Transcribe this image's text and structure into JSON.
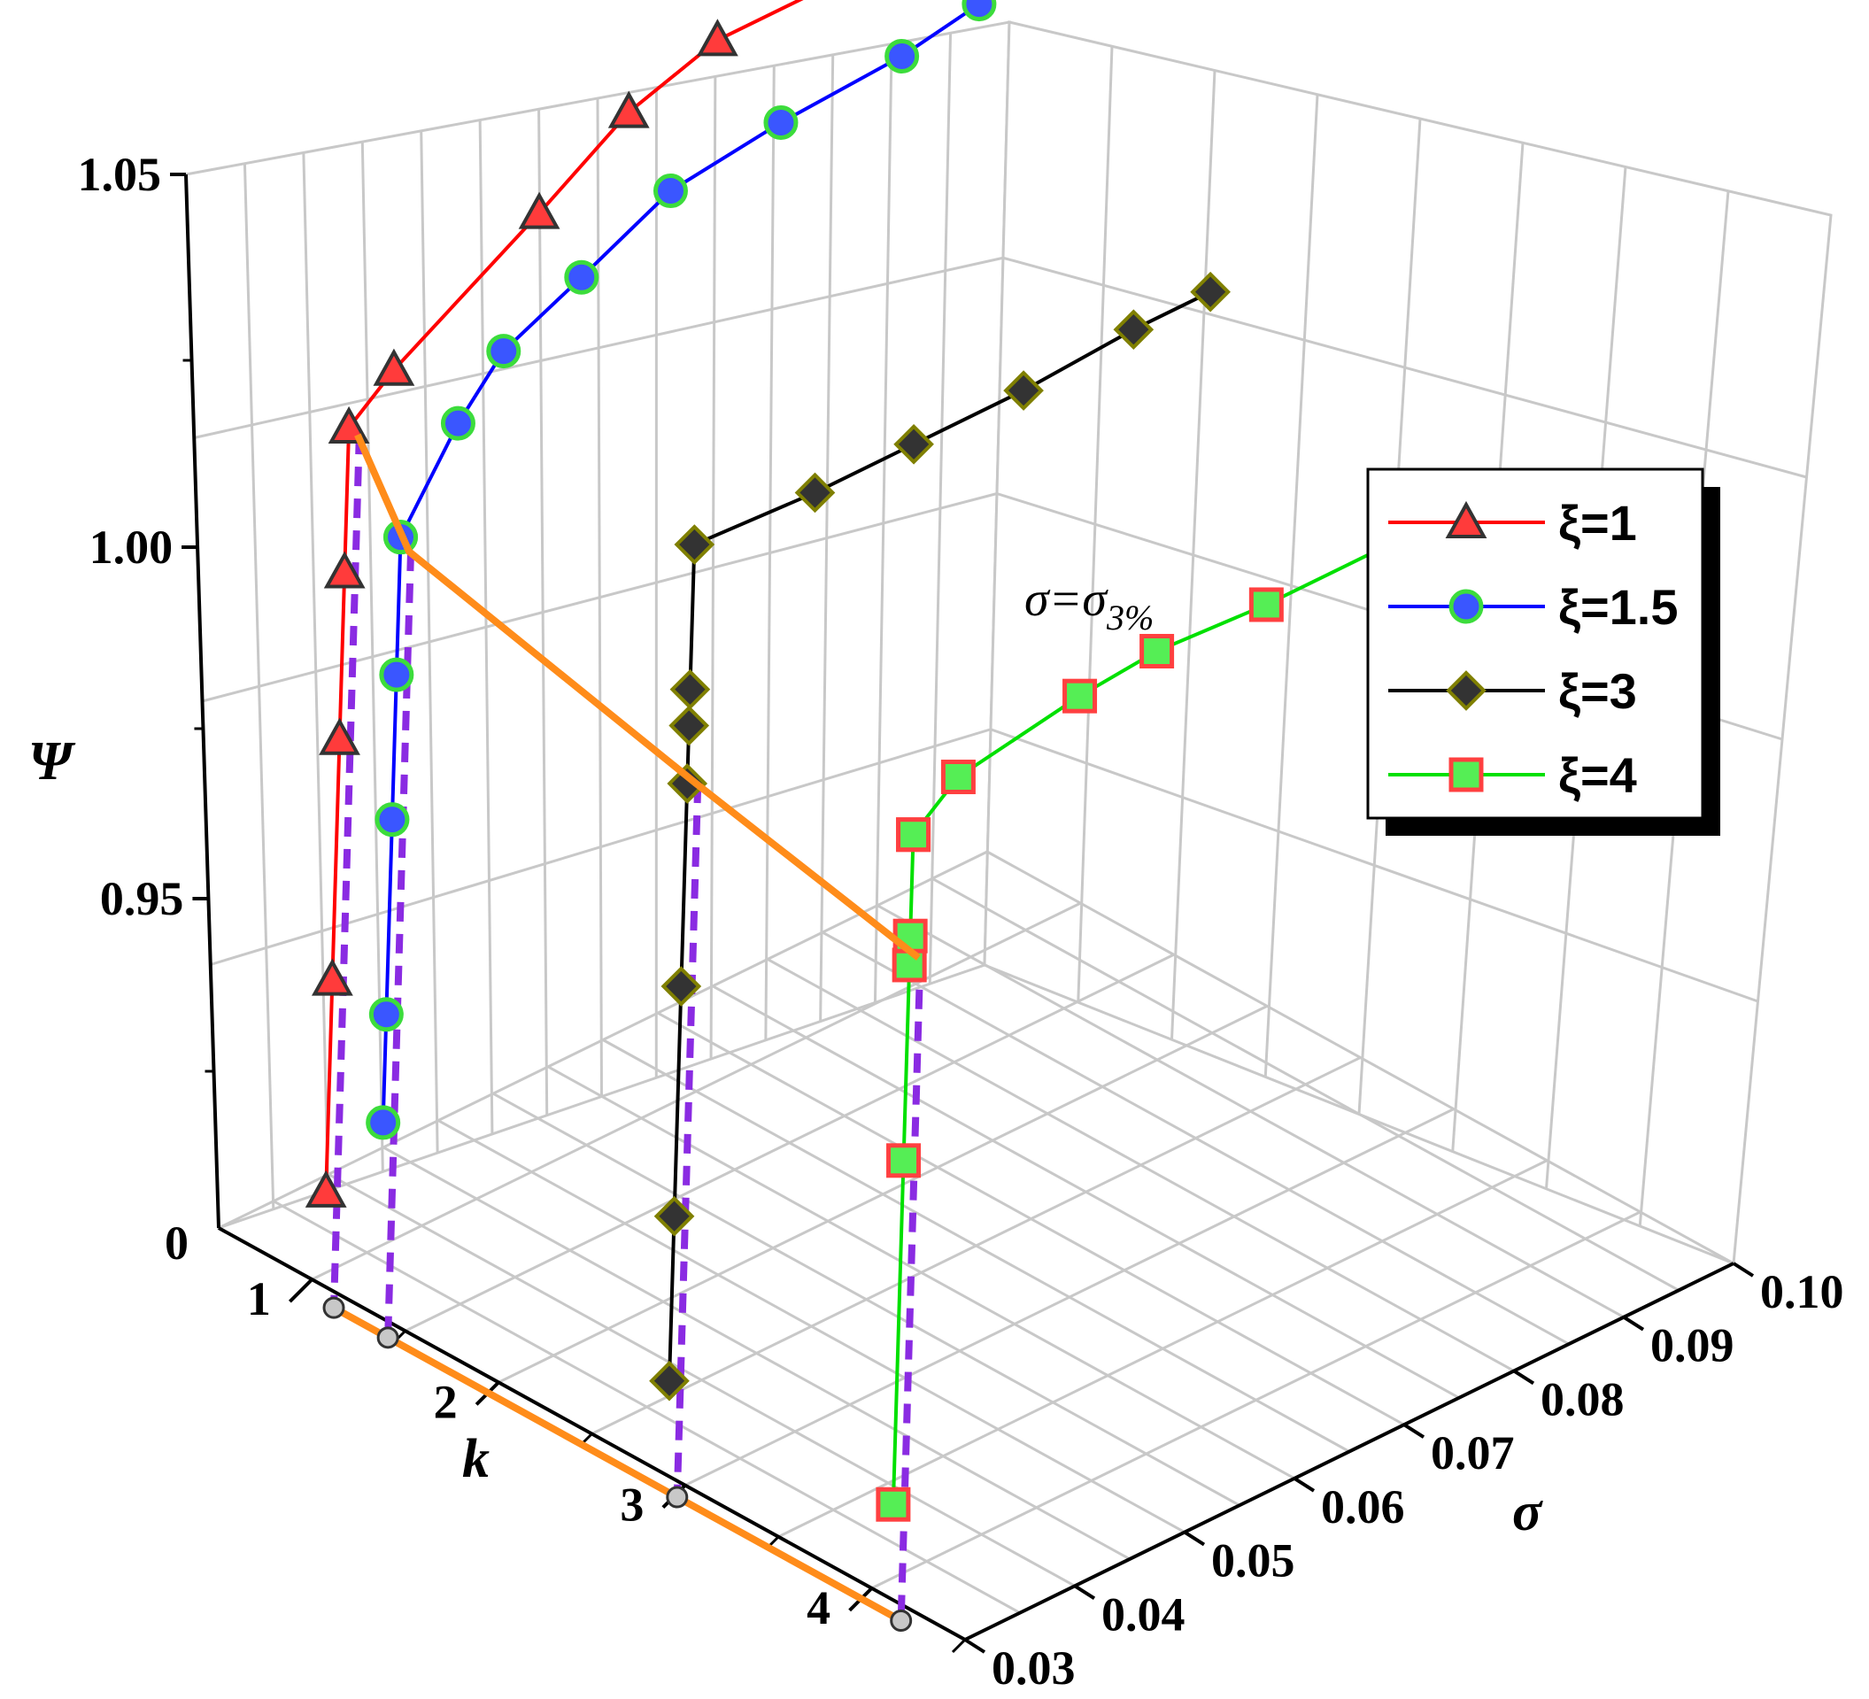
{
  "chart_data": {
    "type": "line",
    "projection": "3d",
    "axes": {
      "k": {
        "label": "k",
        "range": [
          0.5,
          4.5
        ],
        "ticks": [
          "1",
          "2",
          "3",
          "4"
        ]
      },
      "sigma": {
        "label": "σ",
        "range": [
          0.03,
          0.1
        ],
        "ticks": [
          "0.03",
          "0.04",
          "0.05",
          "0.06",
          "0.07",
          "0.08",
          "0.09",
          "0.10"
        ]
      },
      "psi": {
        "label": "Ψ",
        "range": [
          0.95,
          1.05
        ],
        "ticks": [
          "1.05",
          "1.00",
          "0.95"
        ],
        "base_label": "0"
      }
    },
    "grid": true,
    "legend_position": "right",
    "series": [
      {
        "name": "ξ=1",
        "color": "#ff0000",
        "marker": "triangle",
        "marker_fill": "#ff3b3b",
        "marker_edge": "#333333",
        "k": 1.06,
        "sigma": [
          0.03,
          0.03,
          0.03,
          0.03,
          0.03,
          0.034,
          0.047,
          0.055,
          0.063,
          0.074,
          0.085
        ],
        "psi": [
          0.9,
          0.945,
          0.98,
          1.003,
          1.023,
          1.028,
          1.04,
          1.048,
          1.052,
          1.052,
          1.056
        ]
      },
      {
        "name": "ξ=1.5",
        "color": "#0000ff",
        "marker": "circle",
        "marker_fill": "#3a56ff",
        "marker_edge": "#3cdc3c",
        "k": 1.35,
        "sigma": [
          0.03,
          0.03,
          0.03,
          0.03,
          0.03,
          0.03,
          0.035,
          0.039,
          0.046,
          0.054,
          0.064,
          0.075,
          0.082
        ],
        "psi": [
          0.921,
          0.944,
          0.973,
          0.993,
          1.012,
          1.012,
          1.024,
          1.031,
          1.036,
          1.042,
          1.044,
          1.045,
          1.047
        ]
      },
      {
        "name": "ξ=3",
        "color": "#000000",
        "marker": "diamond",
        "marker_fill": "#333333",
        "marker_edge": "#808000",
        "k": 2.9,
        "sigma": [
          0.03,
          0.03,
          0.03,
          0.03,
          0.03,
          0.03,
          0.03,
          0.041,
          0.05,
          0.06,
          0.07,
          0.077
        ],
        "psi": [
          0.9,
          0.935,
          0.972,
          1.0,
          1.008,
          1.013,
          1.033,
          1.032,
          1.032,
          1.032,
          1.033,
          1.033
        ]
      },
      {
        "name": "ξ=4",
        "color": "#00e000",
        "marker": "square",
        "marker_fill": "#55ee55",
        "marker_edge": "#ff4040",
        "k": 4.1,
        "sigma": [
          0.03,
          0.03,
          0.03,
          0.03,
          0.03,
          0.03,
          0.034,
          0.045,
          0.052,
          0.062,
          0.073,
          0.08
        ],
        "psi": [
          0.9,
          0.965,
          0.992,
          0.996,
          1.01,
          1.01,
          1.015,
          1.018,
          1.019,
          1.018,
          1.018,
          1.018
        ]
      }
    ],
    "threshold": {
      "label_base": "σ=σ",
      "label_sub": "3%",
      "color": "#ff8c1a",
      "points": [
        {
          "k": 1.06,
          "psi": 1.022
        },
        {
          "k": 1.35,
          "psi": 1.01
        },
        {
          "k": 2.9,
          "psi": 1.0
        },
        {
          "k": 4.1,
          "psi": 0.993
        }
      ],
      "drop_color": "#8a2be2"
    }
  }
}
